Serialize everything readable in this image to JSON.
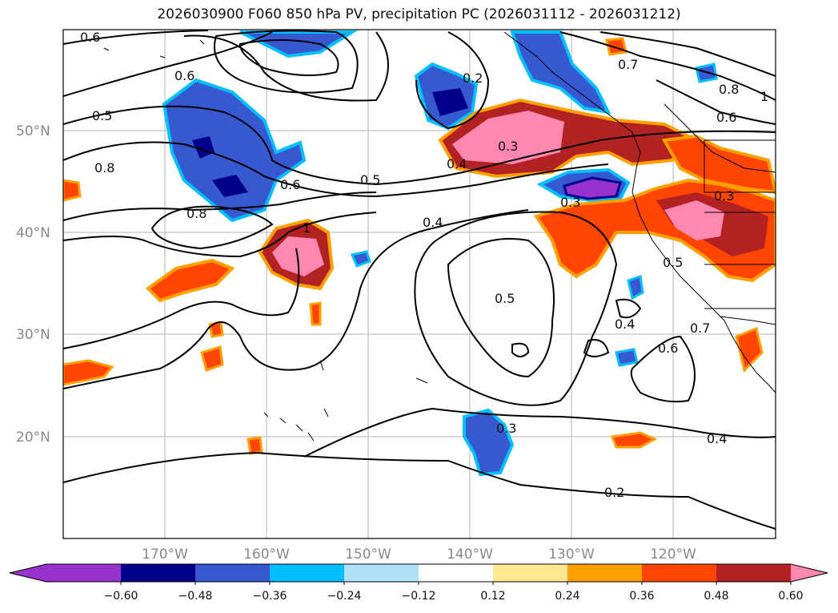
{
  "title": "2026030900 F060 850 hPa PV, precipitation PC (2026031112 - 2026031212)",
  "map": {
    "lat_labels": [
      "50°N",
      "40°N",
      "30°N",
      "20°N"
    ],
    "lon_labels": [
      "170°W",
      "160°W",
      "150°W",
      "140°W",
      "130°W",
      "120°W"
    ],
    "contour_labels": [
      "0.6",
      "0.5",
      "0.6",
      "0.8",
      "0.8",
      "0.6",
      "0.5",
      "0.4",
      "0.3",
      "0.2",
      "0.7",
      "0.8",
      "0.6",
      "1",
      "0.3",
      "0.3",
      "0.4",
      "0.5",
      "0.5",
      "0.4",
      "0.6",
      "0.7",
      "0.3",
      "0.4",
      "0.2",
      "1"
    ]
  },
  "colorbar": {
    "ticks": [
      "−0.60",
      "−0.48",
      "−0.36",
      "−0.24",
      "−0.12",
      "0.12",
      "0.24",
      "0.36",
      "0.48",
      "0.60"
    ],
    "colors": [
      "#9932cc",
      "#00008b",
      "#3658d0",
      "#00bfff",
      "#b0e0fa",
      "#ffffff",
      "#ffe88f",
      "#ffa000",
      "#ff4500",
      "#b22222",
      "#ff87b2",
      "#ff87b2"
    ]
  },
  "colors": {
    "blue_dark": "#00008b",
    "blue_mid": "#3658d0",
    "blue_light": "#00bfff",
    "purple": "#9932cc",
    "red": "#ff4500",
    "dark_red": "#b22222",
    "pink": "#ff87b2",
    "orange": "#ffa000",
    "yellow": "#ffe88f"
  }
}
